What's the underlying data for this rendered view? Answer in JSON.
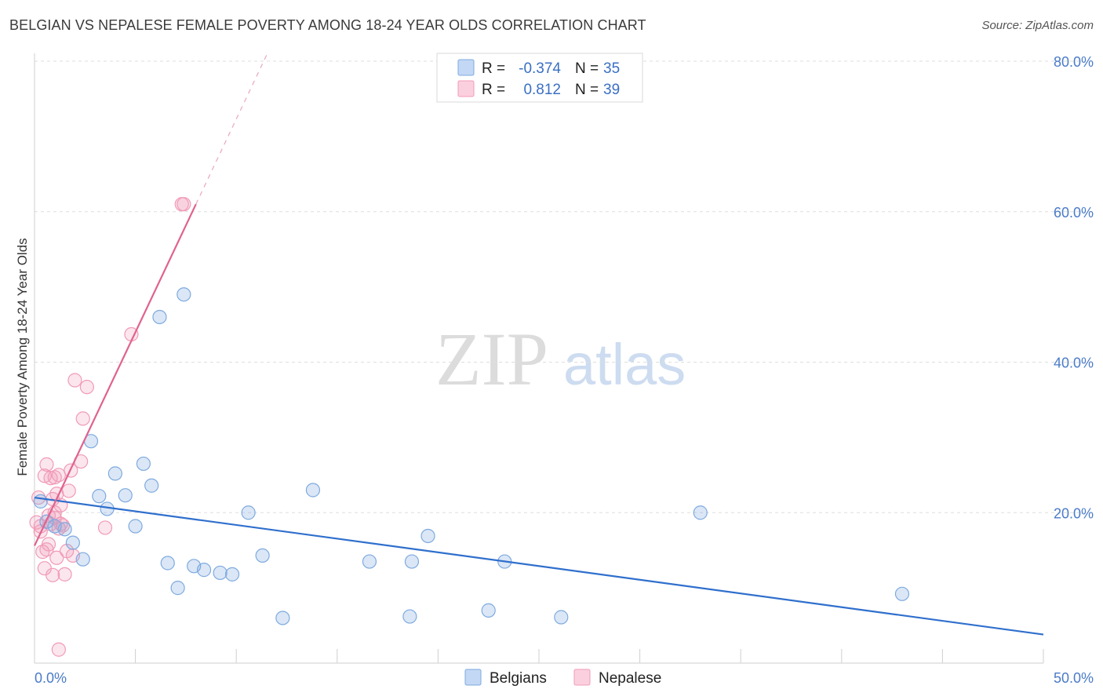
{
  "chart_data": {
    "type": "scatter",
    "title": "BELGIAN VS NEPALESE FEMALE POVERTY AMONG 18-24 YEAR OLDS CORRELATION CHART",
    "source": "Source: ZipAtlas.com",
    "ylabel": "Female Poverty Among 18-24 Year Olds",
    "xlim": [
      0,
      50
    ],
    "ylim": [
      0,
      80
    ],
    "x_tick_labels": [
      "0.0%",
      "50.0%"
    ],
    "y_ticks": [
      20,
      40,
      60,
      80
    ],
    "y_tick_labels": [
      "20.0%",
      "40.0%",
      "60.0%",
      "80.0%"
    ],
    "grid": true,
    "watermark": {
      "zip": "ZIP",
      "atlas": "atlas"
    },
    "legend_stats": [
      {
        "r_label": "R =",
        "r_value": "-0.374",
        "n_label": "N =",
        "n_value": "35"
      },
      {
        "r_label": "R =",
        "r_value": "0.812",
        "n_label": "N =",
        "n_value": "39"
      }
    ],
    "series": [
      {
        "name": "Belgians",
        "color": "#7eaadf",
        "line_color": "#2f6fcd",
        "trend": {
          "x": [
            0,
            50
          ],
          "y": [
            22,
            3.8
          ],
          "dashed_extension": false
        },
        "points": [
          [
            0.3,
            21.5
          ],
          [
            0.6,
            18.8
          ],
          [
            1.0,
            18.2
          ],
          [
            1.5,
            17.8
          ],
          [
            1.9,
            16.0
          ],
          [
            2.4,
            13.8
          ],
          [
            2.8,
            29.5
          ],
          [
            3.2,
            22.2
          ],
          [
            3.6,
            20.5
          ],
          [
            4.0,
            25.2
          ],
          [
            4.5,
            22.3
          ],
          [
            5.0,
            18.2
          ],
          [
            5.4,
            26.5
          ],
          [
            5.8,
            23.6
          ],
          [
            6.2,
            46.0
          ],
          [
            6.6,
            13.3
          ],
          [
            7.1,
            10.0
          ],
          [
            7.4,
            49.0
          ],
          [
            7.9,
            12.9
          ],
          [
            8.4,
            12.4
          ],
          [
            9.2,
            12.0
          ],
          [
            9.8,
            11.8
          ],
          [
            10.6,
            20.0
          ],
          [
            11.3,
            14.3
          ],
          [
            12.3,
            6.0
          ],
          [
            13.8,
            23.0
          ],
          [
            16.6,
            13.5
          ],
          [
            18.6,
            6.2
          ],
          [
            18.7,
            13.5
          ],
          [
            19.5,
            16.9
          ],
          [
            22.5,
            7.0
          ],
          [
            23.3,
            13.5
          ],
          [
            26.1,
            6.1
          ],
          [
            33.0,
            20.0
          ],
          [
            43.0,
            9.2
          ]
        ]
      },
      {
        "name": "Nepalese",
        "color": "#f19ab8",
        "line_color": "#e0628e",
        "trend": {
          "x": [
            0,
            8.0
          ],
          "y": [
            15.6,
            61.0
          ],
          "dashed_to": [
            11.5,
            80.8
          ]
        },
        "points": [
          [
            0.1,
            18.7
          ],
          [
            0.2,
            22.0
          ],
          [
            0.3,
            18.2
          ],
          [
            0.4,
            14.8
          ],
          [
            0.5,
            12.6
          ],
          [
            0.5,
            24.9
          ],
          [
            0.6,
            26.4
          ],
          [
            0.6,
            15.1
          ],
          [
            0.7,
            15.8
          ],
          [
            0.8,
            24.6
          ],
          [
            0.8,
            18.5
          ],
          [
            0.9,
            21.8
          ],
          [
            0.9,
            11.7
          ],
          [
            1.0,
            20.0
          ],
          [
            1.0,
            24.7
          ],
          [
            1.0,
            19.3
          ],
          [
            1.1,
            14.0
          ],
          [
            1.2,
            17.9
          ],
          [
            1.2,
            25.0
          ],
          [
            1.3,
            18.5
          ],
          [
            1.4,
            18.3
          ],
          [
            1.5,
            11.8
          ],
          [
            1.6,
            14.9
          ],
          [
            1.7,
            22.9
          ],
          [
            1.8,
            25.6
          ],
          [
            1.9,
            14.3
          ],
          [
            1.2,
            1.8
          ],
          [
            2.0,
            37.6
          ],
          [
            2.3,
            26.8
          ],
          [
            2.4,
            32.5
          ],
          [
            2.6,
            36.7
          ],
          [
            3.5,
            18.0
          ],
          [
            4.8,
            43.7
          ],
          [
            7.3,
            61.0
          ],
          [
            7.4,
            61.0
          ],
          [
            0.3,
            17.5
          ],
          [
            0.7,
            19.6
          ],
          [
            1.1,
            22.5
          ],
          [
            1.3,
            21.0
          ]
        ]
      }
    ]
  }
}
